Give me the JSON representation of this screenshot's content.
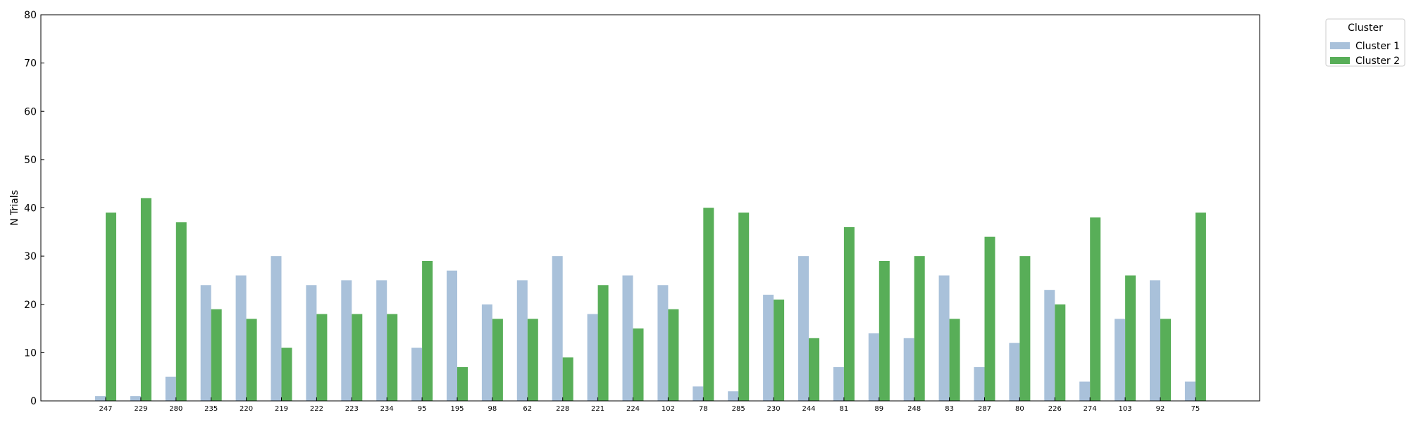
{
  "colors": {
    "cluster1": "#a9c1da",
    "cluster2": "#58ae58"
  },
  "chart_data": {
    "type": "bar",
    "ylabel": "N Trials",
    "xlabel": "",
    "ylim": [
      0,
      80
    ],
    "yticks": [
      0,
      10,
      20,
      30,
      40,
      50,
      60,
      70,
      80
    ],
    "categories": [
      "247",
      "229",
      "280",
      "235",
      "220",
      "219",
      "222",
      "223",
      "234",
      "95",
      "195",
      "98",
      "62",
      "228",
      "221",
      "224",
      "102",
      "78",
      "285",
      "230",
      "244",
      "81",
      "89",
      "248",
      "83",
      "287",
      "80",
      "226",
      "274",
      "103",
      "92",
      "75"
    ],
    "series": [
      {
        "name": "Cluster 1",
        "values": [
          1,
          1,
          5,
          24,
          26,
          30,
          24,
          25,
          25,
          11,
          27,
          20,
          25,
          30,
          18,
          26,
          24,
          3,
          2,
          22,
          30,
          7,
          14,
          13,
          26,
          7,
          12,
          23,
          4,
          17,
          25,
          4
        ]
      },
      {
        "name": "Cluster 2",
        "values": [
          39,
          42,
          37,
          19,
          17,
          11,
          18,
          18,
          18,
          29,
          7,
          17,
          17,
          9,
          24,
          15,
          19,
          40,
          39,
          21,
          13,
          36,
          29,
          30,
          17,
          34,
          30,
          20,
          38,
          26,
          17,
          39
        ]
      }
    ],
    "legend": {
      "title": "Cluster",
      "placement": "outside-top-right"
    },
    "grid": false
  }
}
